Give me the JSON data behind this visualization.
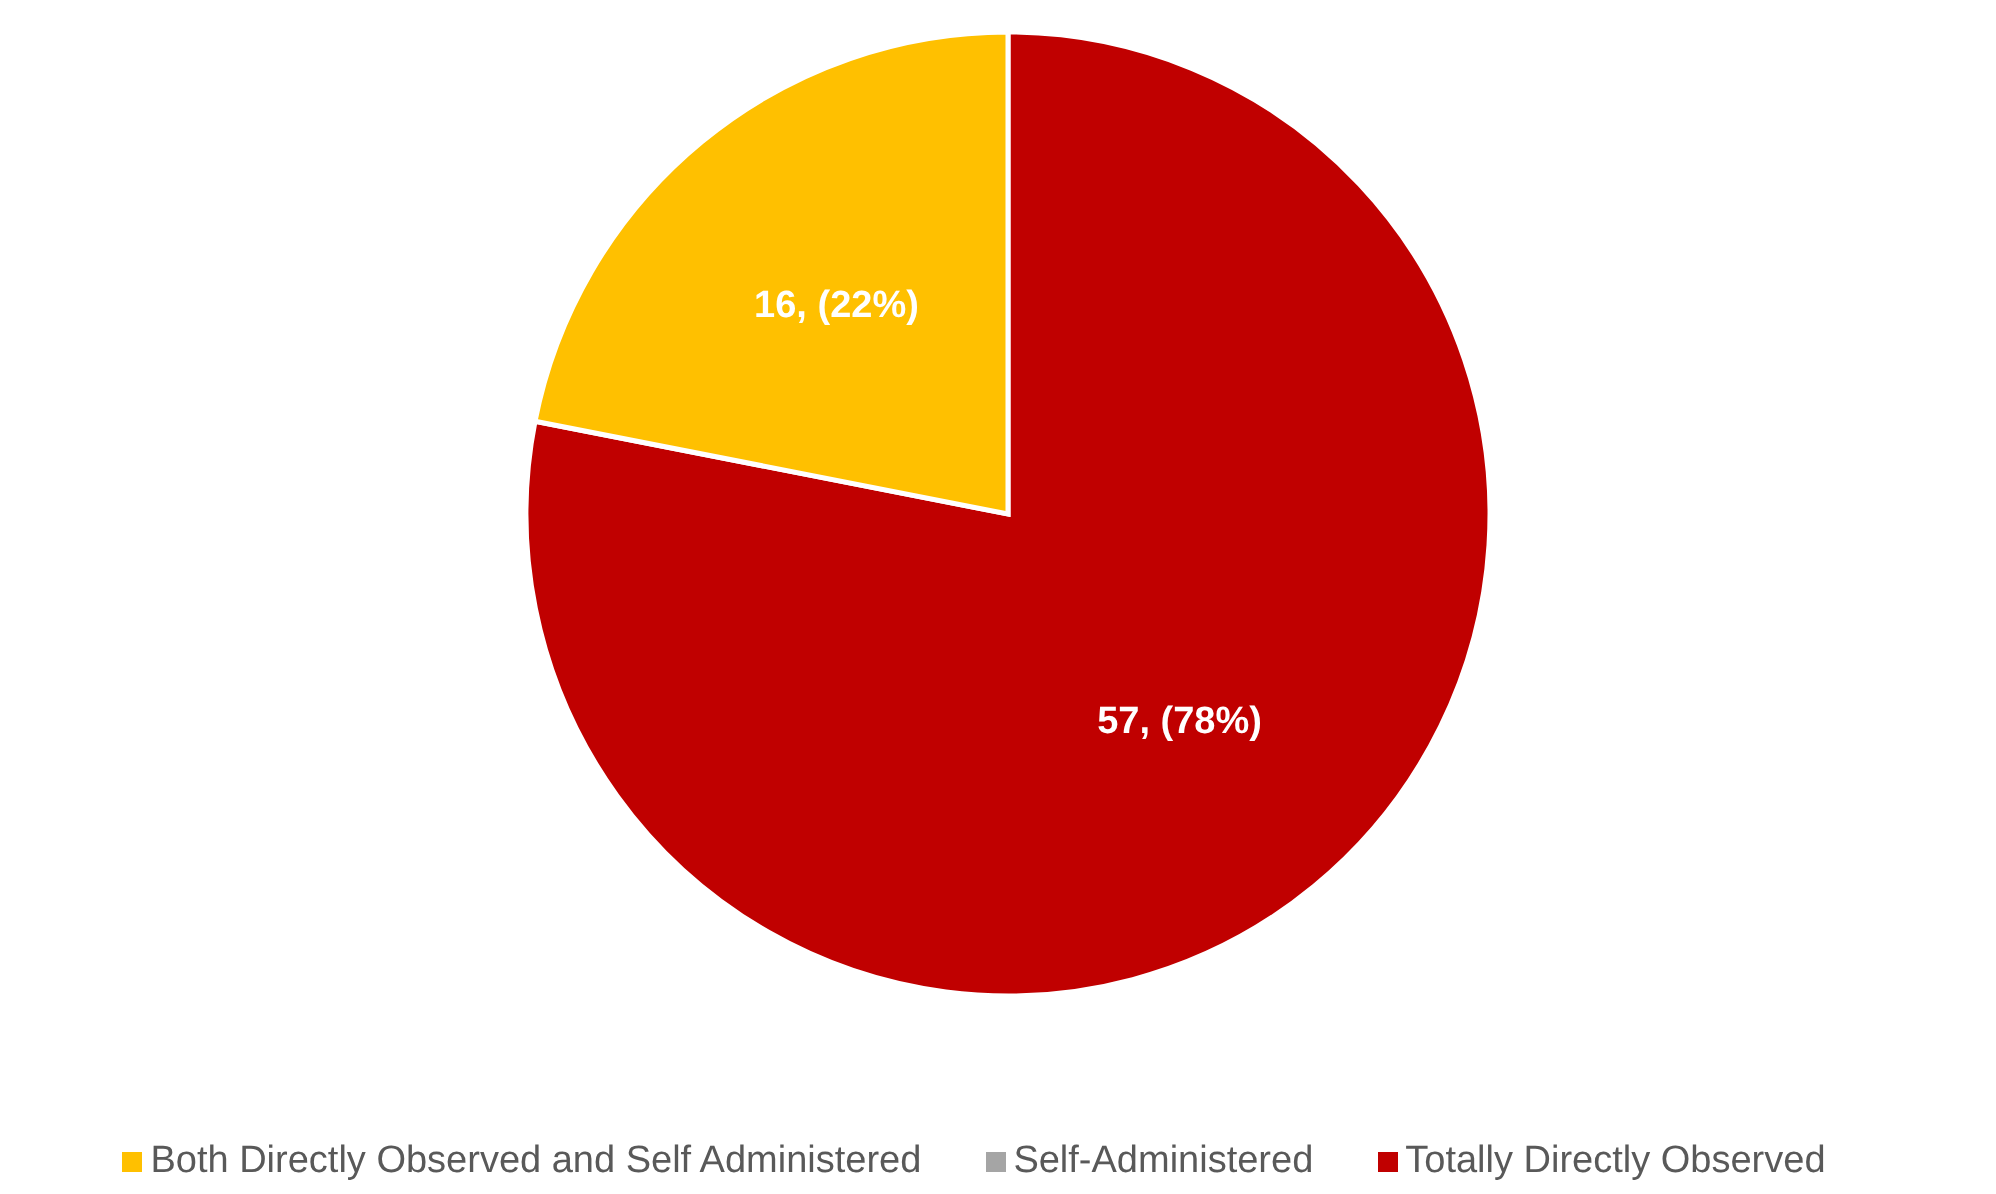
{
  "chart_data": {
    "type": "pie",
    "categories": [
      "Totally Directly Observed",
      "Both Directly Observed and Self Administered",
      "Self-Administered"
    ],
    "values": [
      57,
      16,
      0
    ],
    "colors": [
      "#c00000",
      "#ffc000",
      "#a5a5a5"
    ],
    "value_labels": [
      "57, (78%)",
      "16, (22%)",
      null
    ],
    "legend": "bottom"
  }
}
